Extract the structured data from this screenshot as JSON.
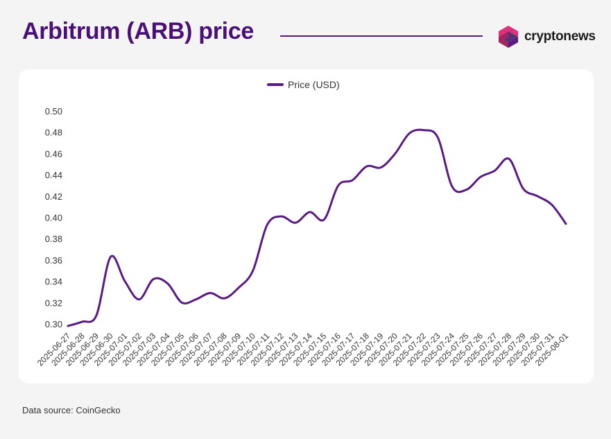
{
  "header": {
    "title": "Arbitrum (ARB) price",
    "brand": "cryptonews",
    "logo_icon": "cryptonews-logo-icon"
  },
  "footer": {
    "source": "Data source: CoinGecko"
  },
  "colors": {
    "line": "#5a1a86",
    "title": "#4b1078",
    "logo_pink": "#e0307a",
    "logo_purple": "#5a1a86"
  },
  "chart_data": {
    "type": "line",
    "legend": "top-center",
    "grid": false,
    "x": [
      "2025-06-27",
      "2025-06-28",
      "2025-06-29",
      "2025-06-30",
      "2025-07-01",
      "2025-07-02",
      "2025-07-03",
      "2025-07-04",
      "2025-07-05",
      "2025-07-06",
      "2025-07-07",
      "2025-07-08",
      "2025-07-09",
      "2025-07-10",
      "2025-07-11",
      "2025-07-12",
      "2025-07-13",
      "2025-07-14",
      "2025-07-15",
      "2025-07-16",
      "2025-07-17",
      "2025-07-18",
      "2025-07-19",
      "2025-07-20",
      "2025-07-21",
      "2025-07-22",
      "2025-07-23",
      "2025-07-24",
      "2025-07-25",
      "2025-07-26",
      "2025-07-27",
      "2025-07-28",
      "2025-07-29",
      "2025-07-30",
      "2025-07-31",
      "2025-08-01"
    ],
    "yticks": [
      "0.30",
      "0.32",
      "0.34",
      "0.36",
      "0.38",
      "0.40",
      "0.42",
      "0.44",
      "0.46",
      "0.48",
      "0.50"
    ],
    "ylim": [
      0.3,
      0.5
    ],
    "series": [
      {
        "name": "Price (USD)",
        "values": [
          0.298,
          0.302,
          0.308,
          0.363,
          0.34,
          0.323,
          0.342,
          0.338,
          0.32,
          0.323,
          0.329,
          0.324,
          0.334,
          0.35,
          0.393,
          0.401,
          0.395,
          0.405,
          0.398,
          0.43,
          0.435,
          0.448,
          0.447,
          0.46,
          0.479,
          0.482,
          0.475,
          0.429,
          0.426,
          0.438,
          0.444,
          0.455,
          0.427,
          0.42,
          0.412,
          0.394
        ]
      }
    ]
  }
}
